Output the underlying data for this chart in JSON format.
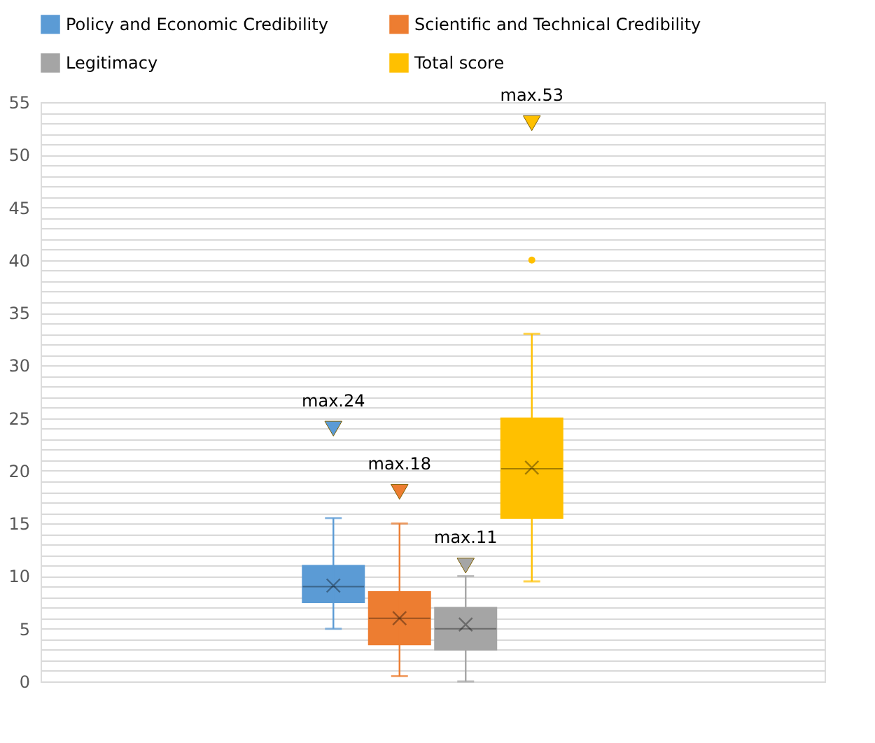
{
  "chart_data": {
    "type": "box",
    "categories": [
      null
    ],
    "series": [
      {
        "name": "Policy and Economic Credibility",
        "color": "#5b9bd5",
        "boxes": [
          {
            "low": 5,
            "q1": 7.5,
            "median": 9,
            "q3": 11,
            "high": 15.5,
            "mean": 9.1
          }
        ]
      },
      {
        "name": "Scientific and Technical Credibility",
        "color": "#ed7d31",
        "boxes": [
          {
            "low": 0.5,
            "q1": 3.5,
            "median": 6,
            "q3": 8.5,
            "high": 15,
            "mean": 6
          }
        ]
      },
      {
        "name": "Legitimacy",
        "color": "#a5a5a5",
        "boxes": [
          {
            "low": 0,
            "q1": 3,
            "median": 5,
            "q3": 7,
            "high": 10,
            "mean": 5.4
          }
        ]
      },
      {
        "name": "Total score",
        "color": "#ffc000",
        "boxes": [
          {
            "low": 9.5,
            "q1": 15.5,
            "median": 20.2,
            "q3": 25,
            "high": 33,
            "mean": 20.3,
            "outliers": [
              40
            ]
          }
        ]
      }
    ],
    "annotations": [
      {
        "text": "max.24",
        "y": 24
      },
      {
        "text": "max.18",
        "y": 18
      },
      {
        "text": "max.11",
        "y": 11
      },
      {
        "text": "max.53",
        "y": 53
      }
    ],
    "ylim": [
      0,
      55
    ],
    "yticks": [
      0,
      {
        "value": 1,
        "label": null
      },
      {
        "value": 2,
        "label": null
      },
      {
        "value": 3,
        "label": null
      },
      {
        "value": 4,
        "label": null
      },
      5,
      {
        "value": 6,
        "label": null
      },
      {
        "value": 7,
        "label": null
      },
      {
        "value": 8,
        "label": null
      },
      {
        "value": 9,
        "label": null
      },
      10,
      {
        "value": 11,
        "label": null
      },
      {
        "value": 12,
        "label": null
      },
      {
        "value": 13,
        "label": null
      },
      {
        "value": 14,
        "label": null
      },
      15,
      {
        "value": 16,
        "label": null
      },
      {
        "value": 17,
        "label": null
      },
      {
        "value": 18,
        "label": null
      },
      {
        "value": 19,
        "label": null
      },
      20,
      {
        "value": 21,
        "label": null
      },
      {
        "value": 22,
        "label": null
      },
      {
        "value": 23,
        "label": null
      },
      {
        "value": 24,
        "label": null
      },
      25,
      {
        "value": 26,
        "label": null
      },
      {
        "value": 27,
        "label": null
      },
      {
        "value": 28,
        "label": null
      },
      {
        "value": 29,
        "label": null
      },
      30,
      {
        "value": 31,
        "label": null
      },
      {
        "value": 32,
        "label": null
      },
      {
        "value": 33,
        "label": null
      },
      {
        "value": 34,
        "label": null
      },
      35,
      {
        "value": 36,
        "label": null
      },
      {
        "value": 37,
        "label": null
      },
      {
        "value": 38,
        "label": null
      },
      {
        "value": 39,
        "label": null
      },
      40,
      {
        "value": 41,
        "label": null
      },
      {
        "value": 42,
        "label": null
      },
      {
        "value": 43,
        "label": null
      },
      {
        "value": 44,
        "label": null
      },
      45,
      {
        "value": 46,
        "label": null
      },
      {
        "value": 47,
        "label": null
      },
      {
        "value": 48,
        "label": null
      },
      {
        "value": 49,
        "label": null
      },
      50,
      {
        "value": 51,
        "label": null
      },
      {
        "value": 52,
        "label": null
      },
      {
        "value": 53,
        "label": null
      },
      {
        "value": 54,
        "label": null
      },
      55
    ],
    "grid": "y",
    "legend": "top",
    "tick_labels": "y"
  }
}
